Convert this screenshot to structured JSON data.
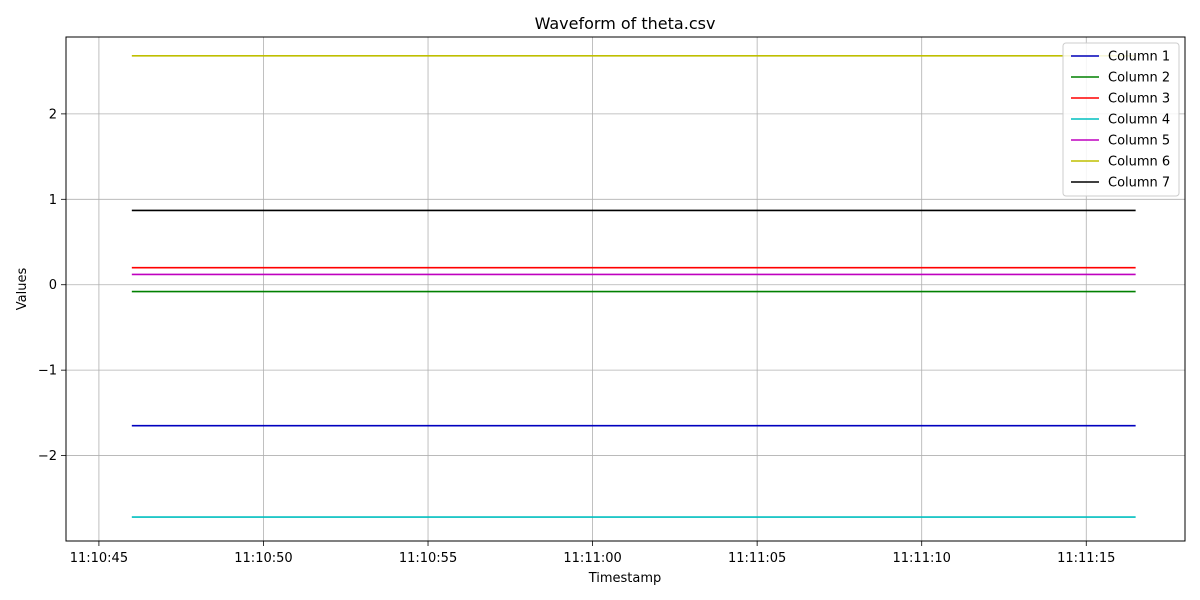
{
  "chart_data": {
    "type": "line",
    "title": "Waveform of theta.csv",
    "xlabel": "Timestamp",
    "ylabel": "Values",
    "x_start": "11:10:46",
    "x_end": "11:11:16.5",
    "xlim": [
      "11:10:44",
      "11:11:18"
    ],
    "ylim": [
      -3.0,
      2.9
    ],
    "x_ticks": [
      "11:10:45",
      "11:10:50",
      "11:10:55",
      "11:11:00",
      "11:11:05",
      "11:11:10",
      "11:11:15"
    ],
    "y_ticks": [
      -2,
      -1,
      0,
      1,
      2
    ],
    "y_tick_labels": [
      "−2",
      "−1",
      "0",
      "1",
      "2"
    ],
    "grid": true,
    "legend_position": "top-right",
    "series": [
      {
        "name": "Column 1",
        "color": "#0000bf",
        "value": -1.65
      },
      {
        "name": "Column 2",
        "color": "#008000",
        "value": -0.08
      },
      {
        "name": "Column 3",
        "color": "#ff0000",
        "value": 0.2
      },
      {
        "name": "Column 4",
        "color": "#00bfbf",
        "value": -2.72
      },
      {
        "name": "Column 5",
        "color": "#bf00bf",
        "value": 0.12
      },
      {
        "name": "Column 6",
        "color": "#bfbf00",
        "value": 2.68
      },
      {
        "name": "Column 7",
        "color": "#000000",
        "value": 0.87
      }
    ]
  }
}
